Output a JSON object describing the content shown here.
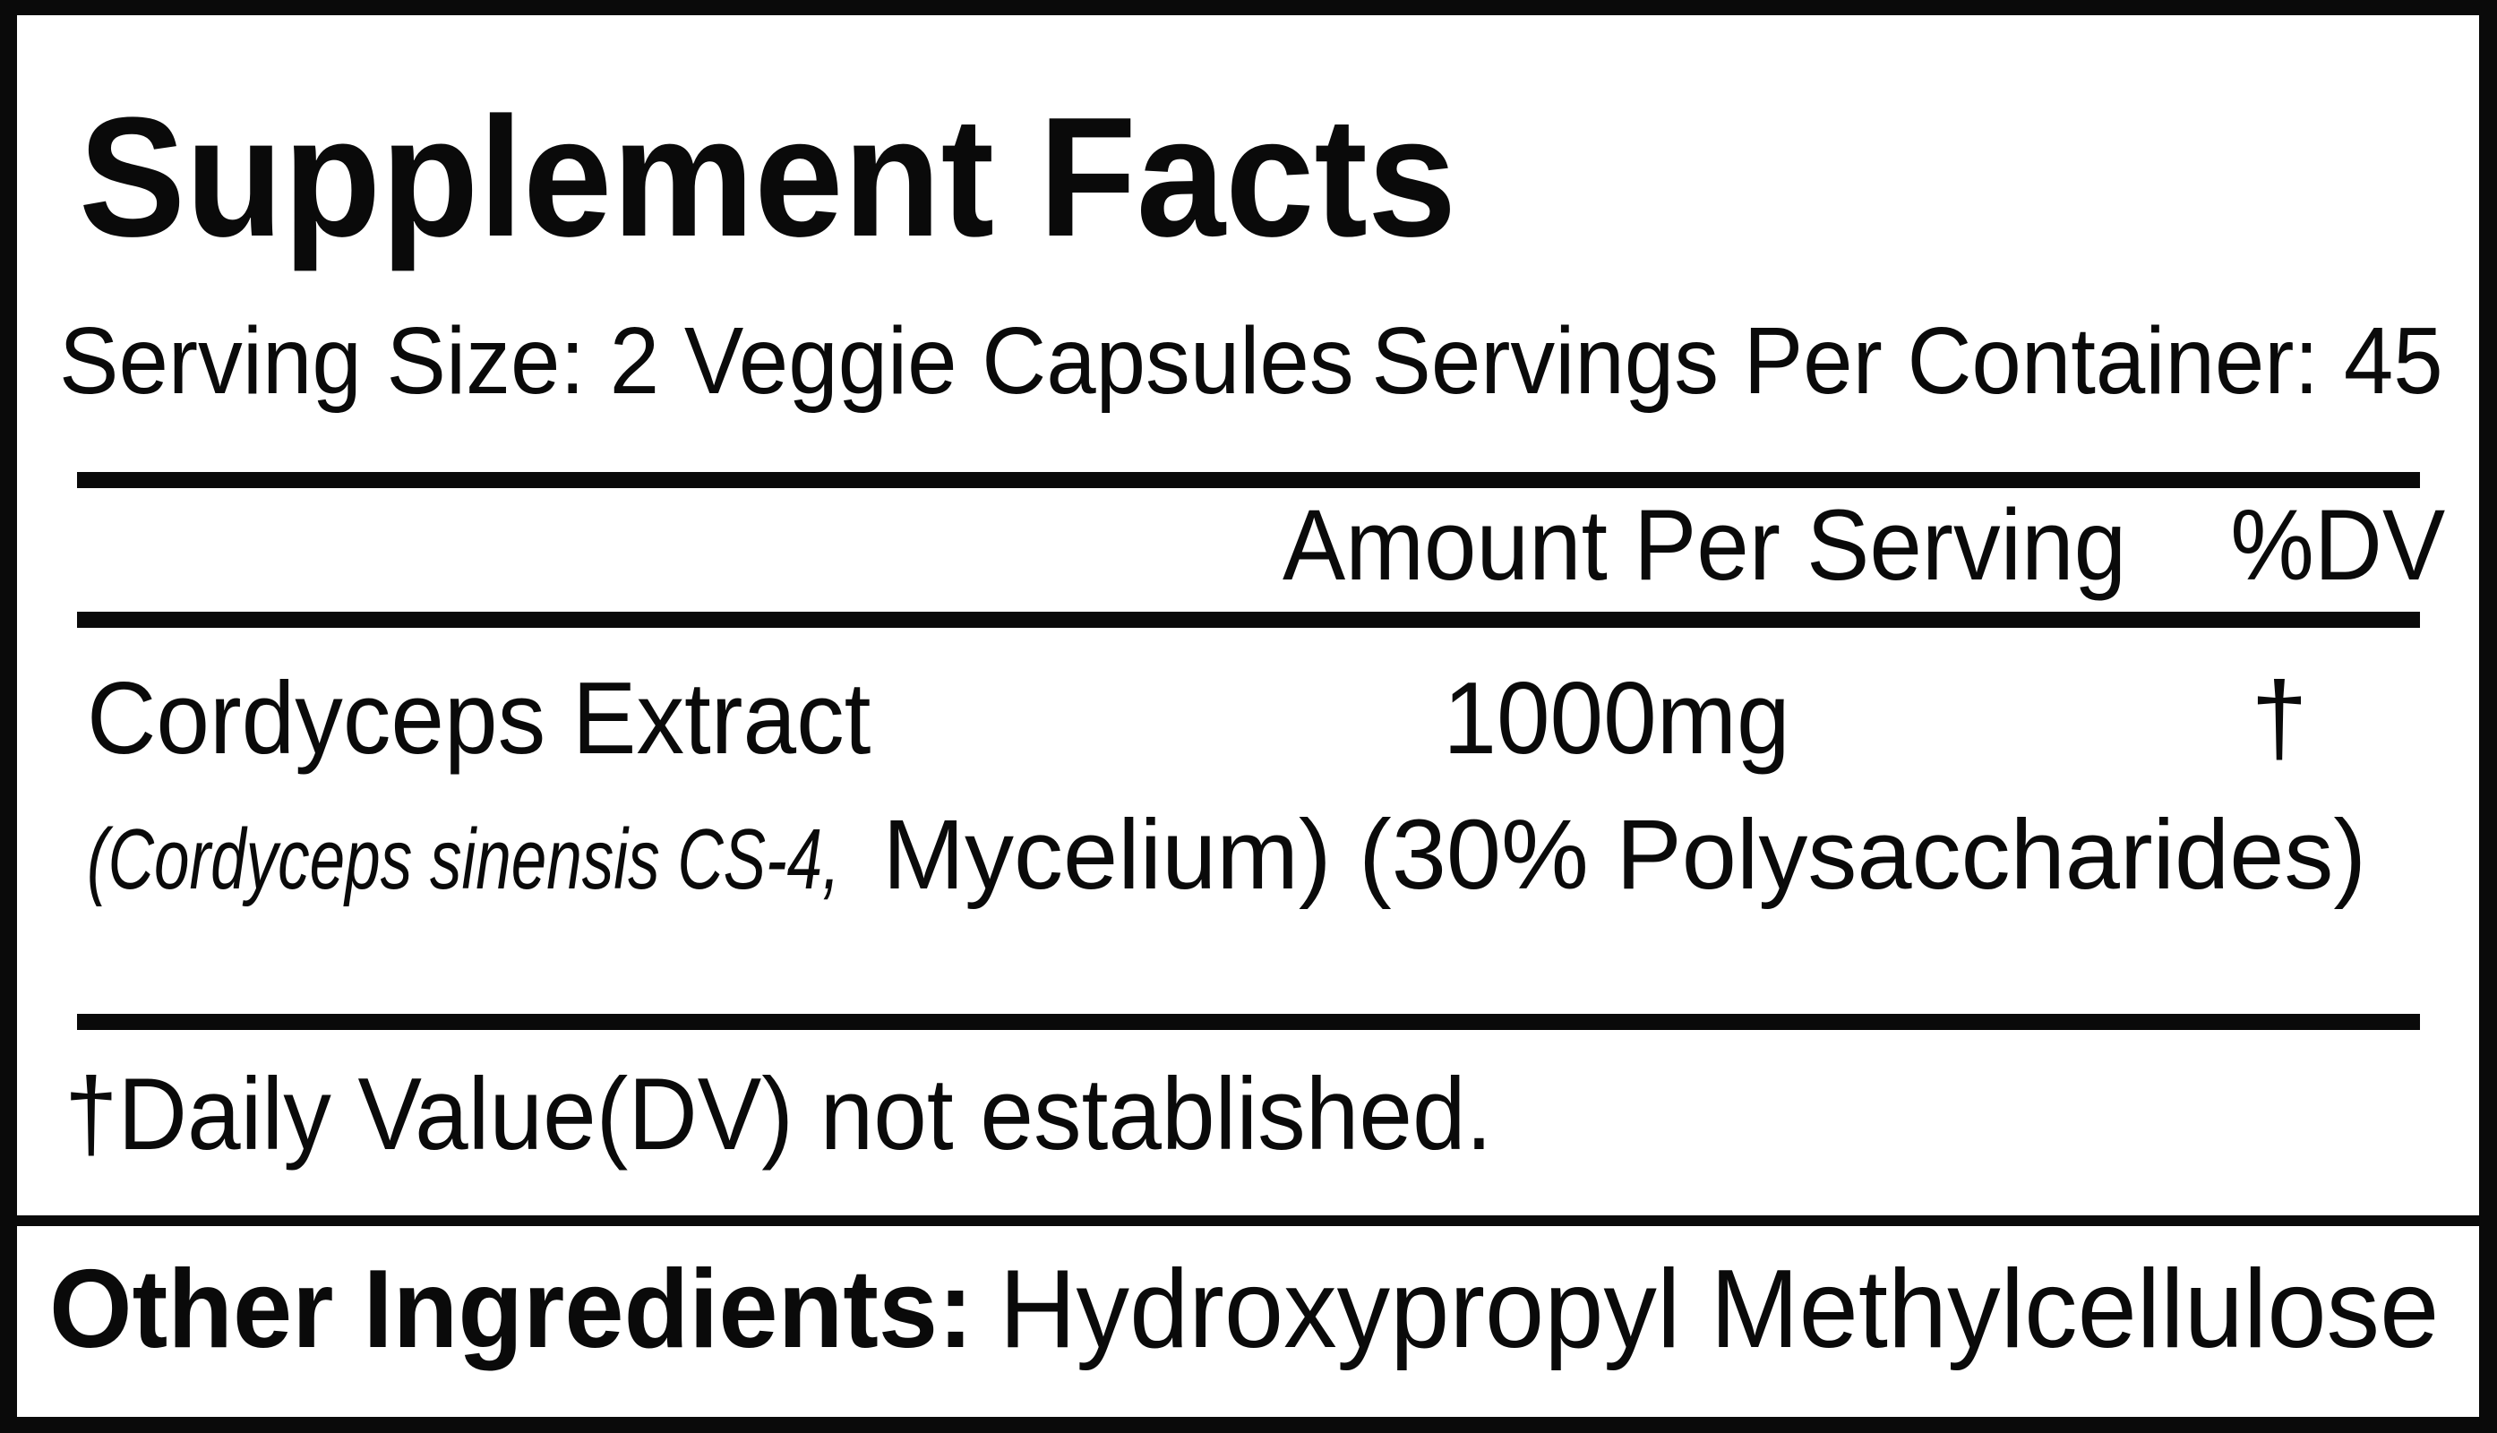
{
  "colors": {
    "ink": "#0a0a0a",
    "background": "#ffffff"
  },
  "panel": {
    "title": "Supplement Facts",
    "serving_size": "Serving Size: 2 Veggie Capsules",
    "servings_per_container": "Servings Per Container: 45",
    "columns": {
      "amount_header": "Amount Per Serving",
      "dv_header": "%DV"
    },
    "ingredient_row": {
      "name": "Cordyceps Extract",
      "amount": "1000mg",
      "daily_value": "†",
      "latin_name": "(Cordyceps sinensis CS-4,",
      "details": "Mycelium) (30% Polysaccharides)"
    },
    "footnote": "†Daily Value(DV) not established.",
    "other_ingredients": {
      "label": "Other Ingredients:",
      "value": "Hydroxypropyl Methylcellulose"
    }
  }
}
